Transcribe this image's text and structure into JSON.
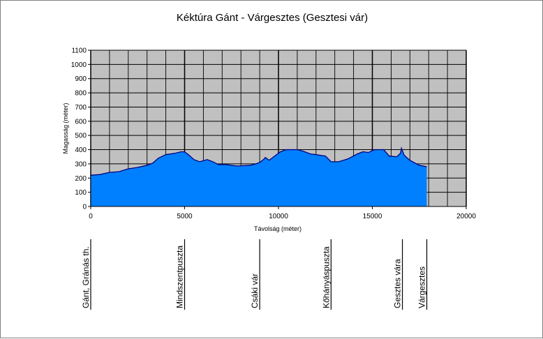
{
  "chart_data": {
    "type": "area",
    "title": "Kéktúra Gánt - Várgesztes (Gesztesi vár)",
    "xlabel": "Távolság (méter)",
    "ylabel": "Magasság (méter)",
    "xlim": [
      0,
      20000
    ],
    "ylim": [
      0,
      1100
    ],
    "xticks": [
      "0",
      "5000",
      "10000",
      "15000",
      "20000"
    ],
    "yticks": [
      "0",
      "100",
      "200",
      "300",
      "400",
      "500",
      "600",
      "700",
      "800",
      "900",
      "1000",
      "1100"
    ],
    "grid": true,
    "plot_background": "#c0c0c0",
    "area_color": "#0080ff",
    "line_color": "#000080",
    "series": [
      {
        "x": [
          0,
          500,
          1000,
          1500,
          2000,
          2500,
          3000,
          3300,
          3600,
          4000,
          4500,
          4800,
          5000,
          5200,
          5500,
          5800,
          6200,
          6500,
          6800,
          7200,
          7800,
          8500,
          8800,
          9000,
          9200,
          9300,
          9500,
          9800,
          10100,
          10400,
          11000,
          11300,
          11700,
          12000,
          12500,
          12800,
          13200,
          13700,
          14200,
          14500,
          14800,
          15100,
          15600,
          15900,
          16300,
          16500,
          16550,
          16700,
          17000,
          17500,
          17900
        ],
        "y": [
          220,
          225,
          240,
          245,
          265,
          275,
          290,
          305,
          340,
          365,
          375,
          385,
          385,
          365,
          330,
          315,
          330,
          315,
          295,
          295,
          285,
          290,
          300,
          310,
          330,
          345,
          325,
          355,
          385,
          400,
          400,
          390,
          370,
          365,
          355,
          315,
          315,
          335,
          370,
          385,
          380,
          400,
          400,
          355,
          350,
          375,
          410,
          360,
          325,
          290,
          280
        ]
      }
    ],
    "waypoints": [
      {
        "label": "Gánt, Gránás th.",
        "x": 0
      },
      {
        "label": "Mindszentpuszta",
        "x": 5000
      },
      {
        "label": "Csáki vár",
        "x": 9000
      },
      {
        "label": "Kőhányáspuszta",
        "x": 12800
      },
      {
        "label": "Gesztes vára",
        "x": 16600
      },
      {
        "label": "Várgesztes",
        "x": 17900
      }
    ]
  }
}
